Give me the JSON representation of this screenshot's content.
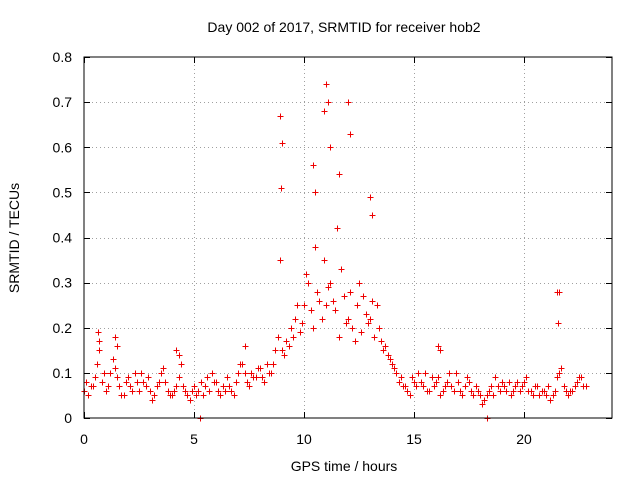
{
  "chart_data": {
    "type": "scatter",
    "title": "Day 002 of 2017, SRMTID for receiver hob2",
    "xlabel": "GPS time / hours",
    "ylabel": "SRMTID / TECUs",
    "xlim": [
      0,
      24
    ],
    "ylim": [
      0,
      0.8
    ],
    "xticks": [
      0,
      5,
      10,
      15,
      20
    ],
    "xtick_labels": [
      "0",
      "5",
      "10",
      "15",
      "20"
    ],
    "yticks": [
      0,
      0.1,
      0.2,
      0.3,
      0.4,
      0.5,
      0.6,
      0.7,
      0.8
    ],
    "ytick_labels": [
      "0",
      "0.1",
      "0.2",
      "0.3",
      "0.4",
      "0.5",
      "0.6",
      "0.7",
      "0.8"
    ],
    "grid": true,
    "marker": "+",
    "color": "#ee0000",
    "series": [
      {
        "name": "hob2",
        "x": [
          0.0,
          0.2,
          0.4,
          0.6,
          0.8,
          1.0,
          1.2,
          1.4,
          1.6,
          1.8,
          2.0,
          2.2,
          2.4,
          2.6,
          2.8,
          3.0,
          3.2,
          3.4,
          3.6,
          3.8,
          4.0,
          4.2,
          4.4,
          4.6,
          4.8,
          5.0,
          5.2,
          5.4,
          5.6,
          5.8,
          6.0,
          6.2,
          6.4,
          6.6,
          6.8,
          7.0,
          7.2,
          7.4,
          7.6,
          7.8,
          8.0,
          8.2,
          8.4,
          8.6,
          8.8,
          9.0,
          9.2,
          9.4,
          9.6,
          9.8,
          10.0,
          10.2,
          10.4,
          10.6,
          10.8,
          11.0,
          11.2,
          11.4,
          11.6,
          11.8,
          12.0,
          12.2,
          12.4,
          12.6,
          12.8,
          13.0,
          13.2,
          13.4,
          13.6,
          13.8,
          14.0,
          14.2,
          14.4,
          14.6,
          14.8,
          15.0,
          15.2,
          15.4,
          15.6,
          15.8,
          16.0,
          16.2,
          16.4,
          16.6,
          16.8,
          17.0,
          17.2,
          17.4,
          17.6,
          17.8,
          18.0,
          18.2,
          18.4,
          18.6,
          18.8,
          19.0,
          19.2,
          19.4,
          19.6,
          19.8,
          20.0,
          20.2,
          20.4,
          20.6,
          20.8,
          21.0,
          21.2,
          21.4,
          21.6,
          21.8,
          22.0,
          22.2,
          22.4,
          22.6,
          22.8,
          0.1,
          0.3,
          0.5,
          0.7,
          0.9,
          1.1,
          1.3,
          1.5,
          1.7,
          1.9,
          2.1,
          2.3,
          2.5,
          2.7,
          2.9,
          3.1,
          3.3,
          3.5,
          3.7,
          3.9,
          4.1,
          4.3,
          4.5,
          4.7,
          4.9,
          5.1,
          5.3,
          5.5,
          5.7,
          5.9,
          6.1,
          6.3,
          6.5,
          6.7,
          6.9,
          7.1,
          7.3,
          7.5,
          7.7,
          7.9,
          8.1,
          8.3,
          8.5,
          8.7,
          8.9,
          9.1,
          9.3,
          9.5,
          9.7,
          9.9,
          10.1,
          10.3,
          10.5,
          10.7,
          10.9,
          11.1,
          11.3,
          11.5,
          11.7,
          11.9,
          12.1,
          12.3,
          12.5,
          12.7,
          12.9,
          13.1,
          13.3,
          13.5,
          13.7,
          13.9,
          14.1,
          14.3,
          14.5,
          14.7,
          14.9,
          15.1,
          15.3,
          15.5,
          15.7,
          15.9,
          16.1,
          16.3,
          16.5,
          16.7,
          16.9,
          17.1,
          17.3,
          17.5,
          17.7,
          17.9,
          18.1,
          18.3,
          18.5,
          18.7,
          18.9,
          19.1,
          19.3,
          19.5,
          19.7,
          19.9,
          20.1,
          20.3,
          20.5,
          20.7,
          20.9,
          21.1,
          21.3,
          21.5,
          21.7,
          21.9,
          22.1,
          22.3,
          22.5,
          22.7,
          8.9,
          8.95,
          9.0,
          10.9,
          11.0,
          11.1,
          12.0,
          12.1,
          10.4,
          10.5,
          11.2,
          11.6,
          13.0,
          13.1,
          21.5,
          21.6,
          21.55,
          0.65,
          0.7,
          1.4,
          1.5,
          4.2,
          4.3,
          5.25,
          7.3,
          16.1,
          16.2,
          18.3
        ],
        "y": [
          0.06,
          0.05,
          0.07,
          0.12,
          0.08,
          0.06,
          0.1,
          0.11,
          0.07,
          0.05,
          0.09,
          0.06,
          0.08,
          0.1,
          0.07,
          0.06,
          0.05,
          0.08,
          0.11,
          0.06,
          0.05,
          0.07,
          0.12,
          0.06,
          0.04,
          0.07,
          0.06,
          0.05,
          0.09,
          0.1,
          0.08,
          0.05,
          0.06,
          0.07,
          0.05,
          0.1,
          0.12,
          0.08,
          0.1,
          0.09,
          0.11,
          0.08,
          0.1,
          0.12,
          0.18,
          0.15,
          0.17,
          0.2,
          0.22,
          0.19,
          0.25,
          0.3,
          0.2,
          0.28,
          0.22,
          0.25,
          0.3,
          0.24,
          0.18,
          0.27,
          0.22,
          0.2,
          0.25,
          0.19,
          0.23,
          0.22,
          0.18,
          0.2,
          0.15,
          0.14,
          0.12,
          0.1,
          0.09,
          0.07,
          0.05,
          0.08,
          0.1,
          0.07,
          0.06,
          0.09,
          0.08,
          0.05,
          0.07,
          0.1,
          0.06,
          0.08,
          0.05,
          0.09,
          0.06,
          0.07,
          0.05,
          0.04,
          0.06,
          0.05,
          0.07,
          0.08,
          0.06,
          0.05,
          0.07,
          0.06,
          0.08,
          0.06,
          0.05,
          0.07,
          0.06,
          0.05,
          0.04,
          0.06,
          0.1,
          0.07,
          0.05,
          0.06,
          0.08,
          0.09,
          0.07,
          0.08,
          0.07,
          0.09,
          0.15,
          0.1,
          0.07,
          0.13,
          0.09,
          0.05,
          0.08,
          0.07,
          0.1,
          0.06,
          0.08,
          0.09,
          0.04,
          0.07,
          0.1,
          0.08,
          0.05,
          0.06,
          0.09,
          0.07,
          0.05,
          0.06,
          0.05,
          0.08,
          0.07,
          0.06,
          0.08,
          0.06,
          0.07,
          0.09,
          0.06,
          0.08,
          0.12,
          0.1,
          0.07,
          0.09,
          0.11,
          0.09,
          0.12,
          0.1,
          0.15,
          0.35,
          0.14,
          0.16,
          0.18,
          0.25,
          0.21,
          0.32,
          0.24,
          0.38,
          0.26,
          0.35,
          0.29,
          0.26,
          0.42,
          0.33,
          0.21,
          0.28,
          0.17,
          0.3,
          0.27,
          0.21,
          0.26,
          0.25,
          0.17,
          0.16,
          0.13,
          0.11,
          0.08,
          0.07,
          0.06,
          0.09,
          0.07,
          0.08,
          0.1,
          0.06,
          0.07,
          0.09,
          0.06,
          0.08,
          0.07,
          0.1,
          0.06,
          0.07,
          0.08,
          0.05,
          0.06,
          0.03,
          0.05,
          0.07,
          0.09,
          0.06,
          0.07,
          0.08,
          0.06,
          0.08,
          0.07,
          0.09,
          0.06,
          0.07,
          0.05,
          0.06,
          0.07,
          0.05,
          0.09,
          0.11,
          0.06,
          0.06,
          0.07,
          0.09,
          0.07,
          0.67,
          0.51,
          0.61,
          0.68,
          0.74,
          0.7,
          0.7,
          0.63,
          0.56,
          0.5,
          0.6,
          0.54,
          0.49,
          0.45,
          0.28,
          0.28,
          0.21,
          0.19,
          0.17,
          0.18,
          0.16,
          0.15,
          0.14,
          0.0,
          0.16,
          0.16,
          0.15,
          0.0
        ]
      }
    ]
  }
}
